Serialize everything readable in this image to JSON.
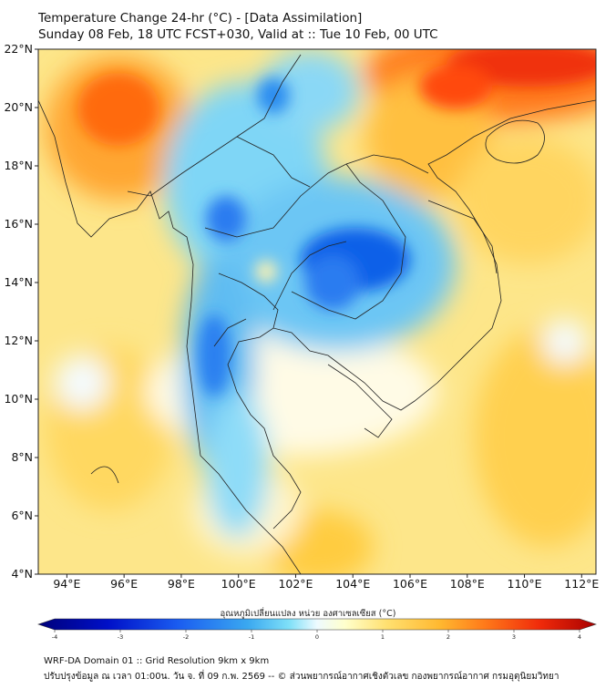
{
  "title": {
    "line1": "Temperature Change 24-hr (°C) - [Data Assimilation]",
    "line2": "Sunday 08 Feb, 18 UTC FCST+030, Valid at :: Tue 10 Feb, 00 UTC"
  },
  "axes": {
    "lat_labels": [
      "22°N",
      "20°N",
      "18°N",
      "16°N",
      "14°N",
      "12°N",
      "10°N",
      "8°N",
      "6°N",
      "4°N"
    ],
    "lon_labels": [
      "94°E",
      "96°E",
      "98°E",
      "100°E",
      "102°E",
      "104°E",
      "106°E",
      "108°E",
      "110°E",
      "112°E"
    ]
  },
  "colorbar": {
    "title": "อุณหภูมิเปลี่ยนแปลง หน่วย องศาเซลเซียส (°C)",
    "ticks": [
      "-4",
      "-3",
      "-2",
      "-1",
      "0",
      "1",
      "2",
      "3",
      "4"
    ],
    "colors": [
      "#00007a",
      "#0010c8",
      "#1a5cf0",
      "#3aa8f0",
      "#7fe0f8",
      "#eefaff",
      "#ffffcc",
      "#ffe070",
      "#ffb830",
      "#ff7a1a",
      "#f02a0a",
      "#a80000"
    ]
  },
  "footer": {
    "line1": "WRF-DA Domain 01 :: Grid Resolution 9km x 9km",
    "line2": "ปรับปรุงข้อมูล ณ เวลา 01:00น. วัน จ. ที่ 09 ก.พ. 2569 -- © ส่วนพยากรณ์อากาศเชิงตัวเลข กองพยากรณ์อากาศ กรมอุตุนิยมวิทยา"
  }
}
